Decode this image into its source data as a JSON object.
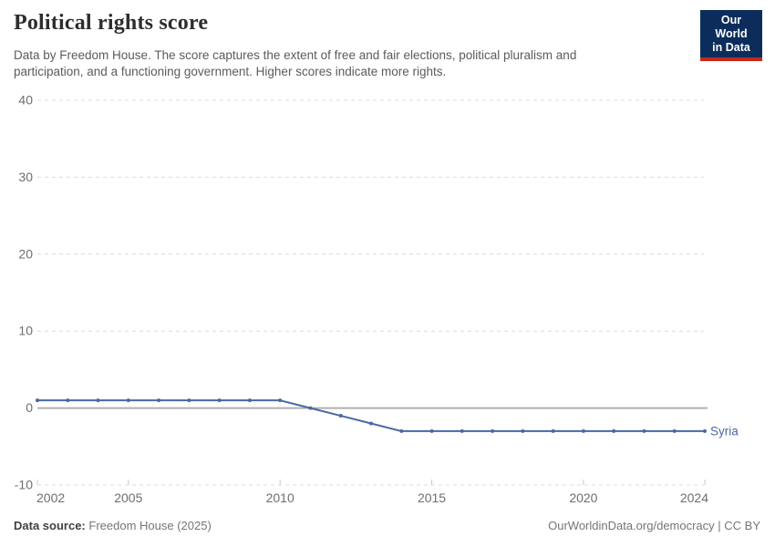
{
  "header": {
    "title": "Political rights score",
    "subtitle_lines": [
      "Data by Freedom House. The score captures the extent of free and fair elections, political pluralism and",
      "participation, and a functioning government. Higher scores indicate more rights."
    ],
    "logo_lines": [
      "Our World",
      "in Data"
    ]
  },
  "chart_data": {
    "type": "line",
    "title": "Political rights score",
    "xlabel": "",
    "ylabel": "",
    "xlim": [
      2002,
      2024
    ],
    "ylim": [
      -10,
      40
    ],
    "grid": "horizontal-dashed",
    "legend_position": "line-end-label",
    "xticks": [
      2002,
      2005,
      2010,
      2015,
      2020,
      2024
    ],
    "yticks": [
      -10,
      0,
      10,
      20,
      30,
      40
    ],
    "x": [
      2002,
      2003,
      2004,
      2005,
      2006,
      2007,
      2008,
      2009,
      2010,
      2011,
      2012,
      2013,
      2014,
      2015,
      2016,
      2017,
      2018,
      2019,
      2020,
      2021,
      2022,
      2023,
      2024
    ],
    "series": [
      {
        "name": "Syria",
        "color": "#4a68a4",
        "values": [
          1,
          1,
          1,
          1,
          1,
          1,
          1,
          1,
          1,
          0,
          -1,
          -2,
          -3,
          -3,
          -3,
          -3,
          -3,
          -3,
          -3,
          -3,
          -3,
          -3,
          -3
        ]
      }
    ]
  },
  "footer": {
    "source_label": "Data source:",
    "source_value": "Freedom House (2025)",
    "credit": "OurWorldinData.org/democracy | CC BY"
  },
  "colors": {
    "accent_blue": "#4a68a4",
    "logo_bg": "#0c2d5b",
    "logo_red": "#c5281c",
    "grid": "#dcdcdc",
    "zero_line": "#b0b0b0",
    "axis_text": "#6e6e6e",
    "tick_mark": "#c8c8c8"
  }
}
